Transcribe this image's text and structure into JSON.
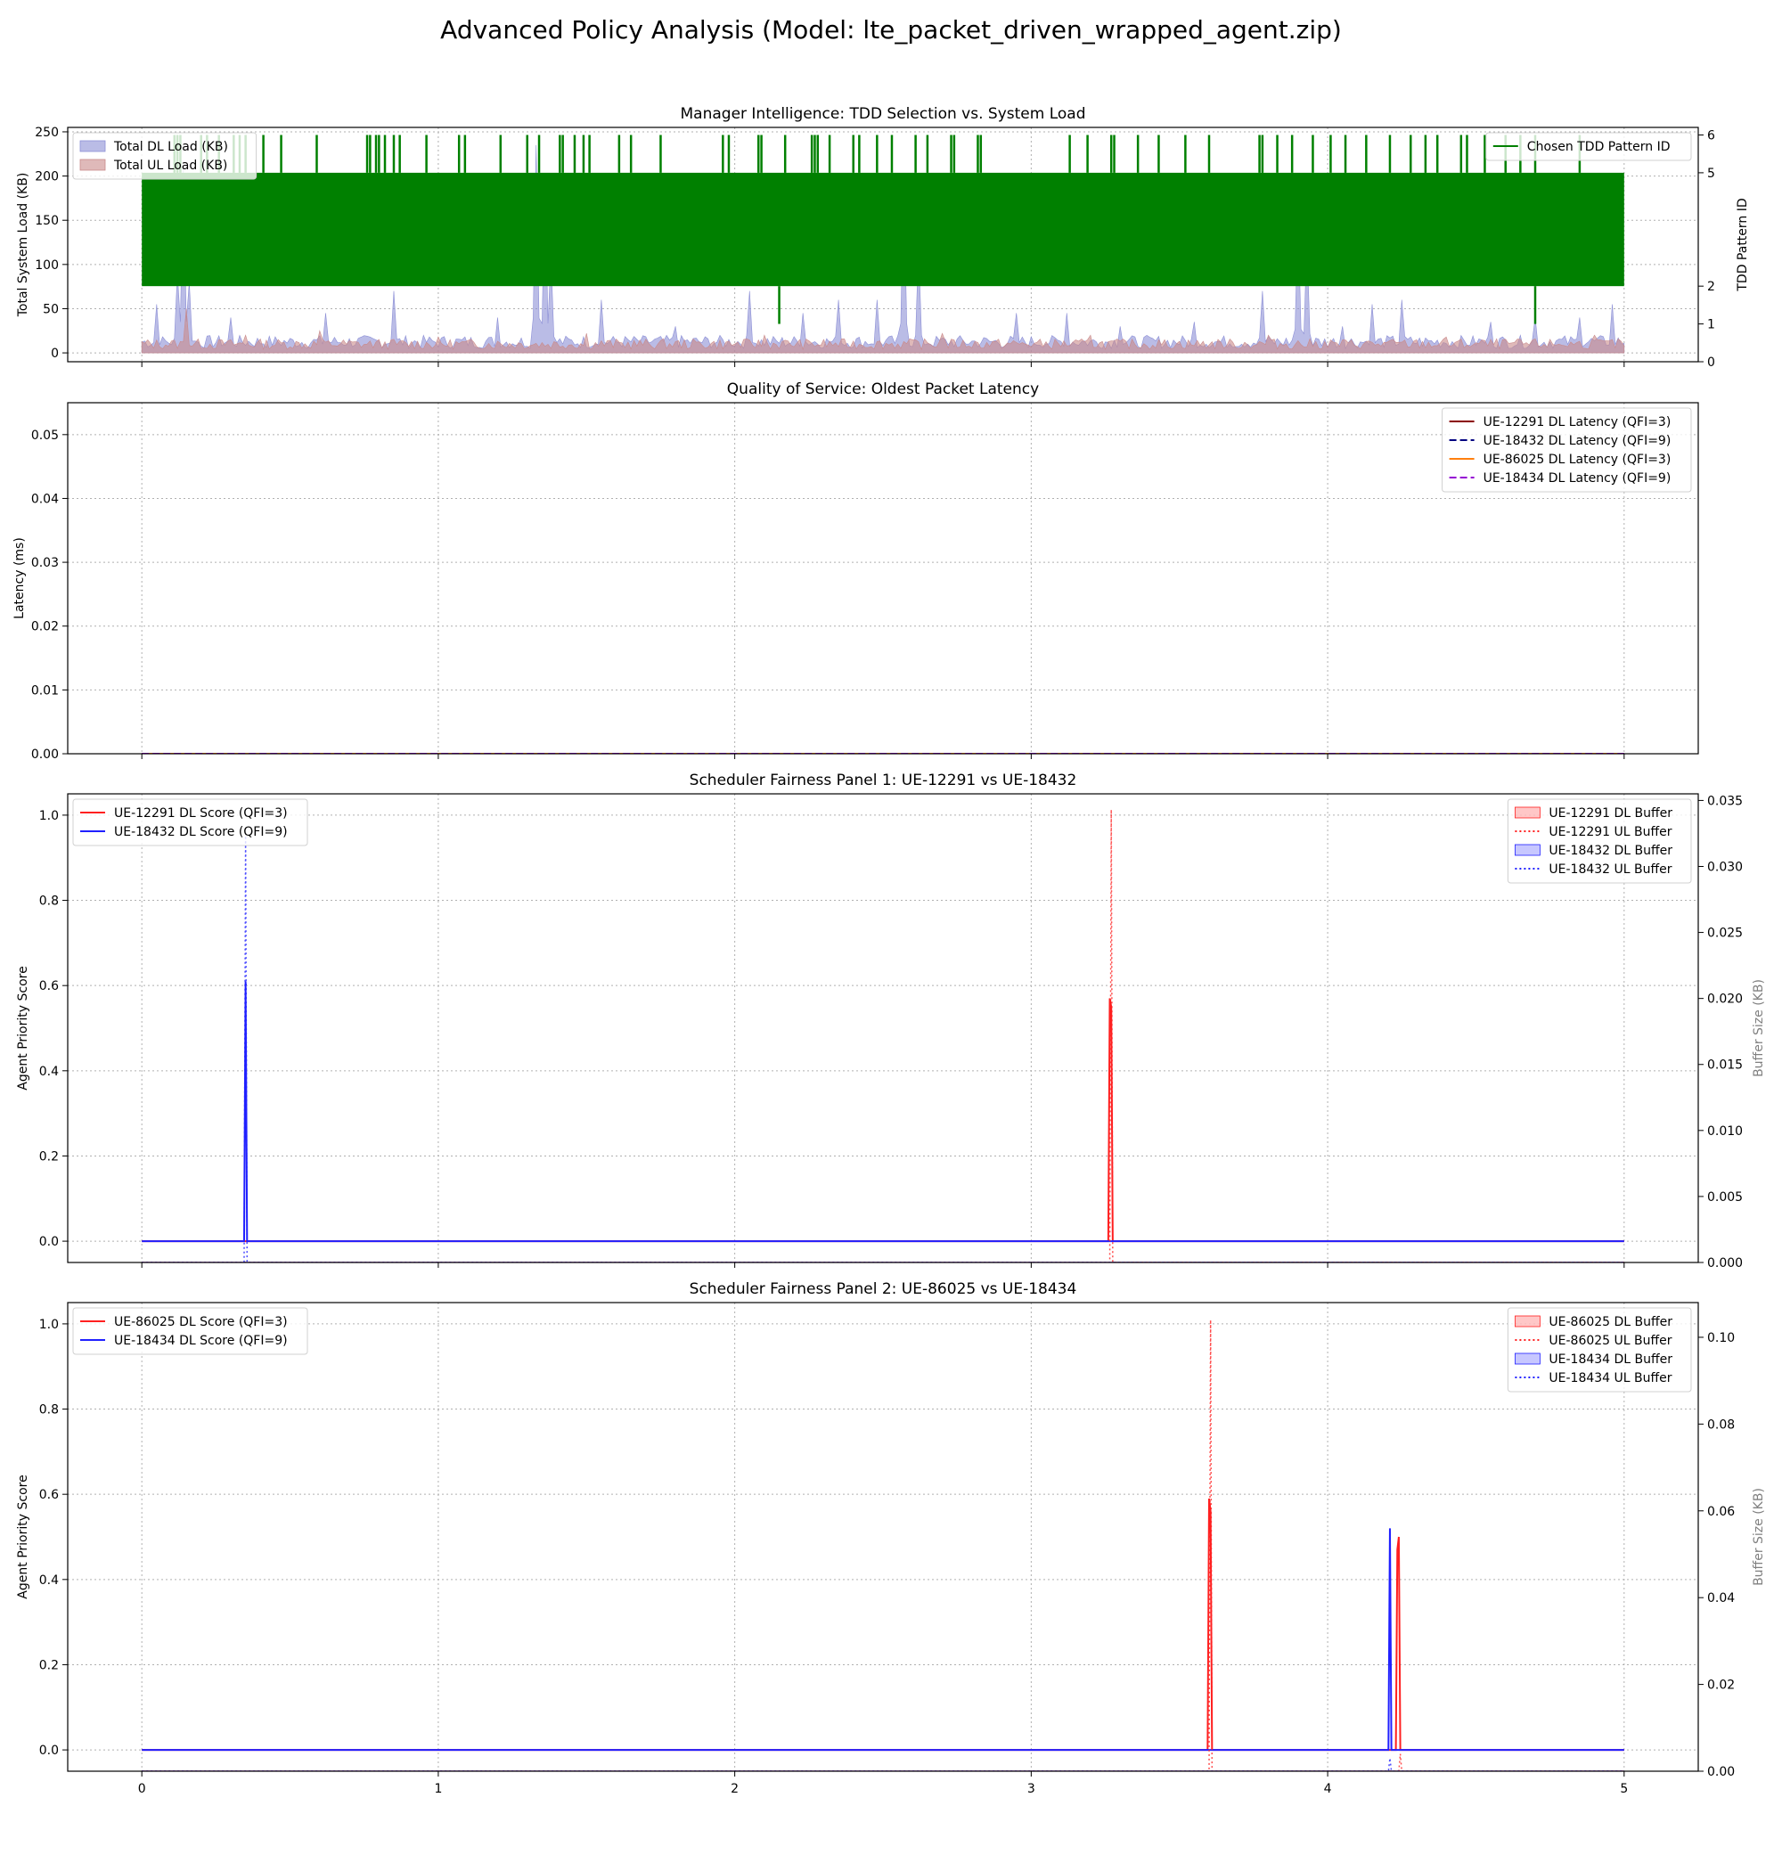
{
  "figure": {
    "title": "Advanced Policy Analysis (Model: lte_packet_driven_wrapped_agent.zip)"
  },
  "colors": {
    "dl_load": "#8c8fd6",
    "ul_load": "#c98a8a",
    "tdd": "#008000",
    "red": "#ff2020",
    "blue": "#2020ff",
    "darkred": "#8b0000",
    "navy": "#000080",
    "orange": "#ff7f0e",
    "purple": "#9400d3"
  },
  "chart_data": [
    {
      "type": "area",
      "title": "Manager Intelligence: TDD Selection vs. System Load",
      "xlabel": "",
      "ylabel": "Total System Load (KB)",
      "y2label": "TDD Pattern ID",
      "xlim": [
        -0.25,
        5.25
      ],
      "ylim": [
        -10,
        255
      ],
      "y2lim": [
        0,
        6.2
      ],
      "xticks": [
        0,
        1,
        2,
        3,
        4,
        5
      ],
      "yticks": [
        0,
        50,
        100,
        150,
        200,
        250
      ],
      "y2ticks": [
        0,
        1,
        2,
        5,
        6
      ],
      "grid": true,
      "legend_left": "top-left",
      "legend_right": "top-right",
      "series": [
        {
          "name": "Total DL Load (KB)",
          "axis": "left",
          "kind": "fill",
          "baseline": 5,
          "spikes": [
            [
              0.05,
              55
            ],
            [
              0.12,
              90
            ],
            [
              0.14,
              210
            ],
            [
              0.16,
              80
            ],
            [
              0.3,
              40
            ],
            [
              0.62,
              45
            ],
            [
              0.85,
              70
            ],
            [
              1.2,
              40
            ],
            [
              1.33,
              235
            ],
            [
              1.36,
              200
            ],
            [
              1.38,
              110
            ],
            [
              1.55,
              60
            ],
            [
              1.8,
              30
            ],
            [
              2.05,
              70
            ],
            [
              2.23,
              45
            ],
            [
              2.35,
              60
            ],
            [
              2.48,
              60
            ],
            [
              2.57,
              200
            ],
            [
              2.62,
              120
            ],
            [
              2.95,
              45
            ],
            [
              3.12,
              45
            ],
            [
              3.3,
              30
            ],
            [
              3.55,
              35
            ],
            [
              3.78,
              70
            ],
            [
              3.9,
              160
            ],
            [
              3.93,
              130
            ],
            [
              4.05,
              30
            ],
            [
              4.15,
              55
            ],
            [
              4.25,
              60
            ],
            [
              4.55,
              35
            ],
            [
              4.7,
              40
            ],
            [
              4.85,
              40
            ],
            [
              4.96,
              55
            ]
          ]
        },
        {
          "name": "Total UL Load (KB)",
          "axis": "left",
          "kind": "fill",
          "baseline": 4,
          "spikes": [
            [
              0.15,
              50
            ],
            [
              0.35,
              20
            ],
            [
              0.6,
              25
            ],
            [
              1.0,
              18
            ],
            [
              1.5,
              22
            ],
            [
              2.1,
              20
            ],
            [
              2.7,
              22
            ],
            [
              3.2,
              20
            ],
            [
              3.8,
              20
            ],
            [
              4.4,
              18
            ],
            [
              4.9,
              20
            ]
          ]
        },
        {
          "name": "Chosen TDD Pattern ID",
          "axis": "right",
          "kind": "step",
          "low": 2,
          "high": 5,
          "x_to_6": [
            0.11,
            0.12,
            0.13,
            0.2,
            0.22,
            0.26,
            0.31,
            0.33,
            0.35,
            0.41,
            0.47,
            0.59,
            0.76,
            0.77,
            0.79,
            0.8,
            0.82,
            0.85,
            0.87,
            0.96,
            1.07,
            1.09,
            1.21,
            1.3,
            1.34,
            1.41,
            1.42,
            1.46,
            1.49,
            1.51,
            1.61,
            1.65,
            1.75,
            1.96,
            1.98,
            2.08,
            2.09,
            2.17,
            2.26,
            2.27,
            2.28,
            2.32,
            2.4,
            2.42,
            2.48,
            2.53,
            2.61,
            2.65,
            2.73,
            2.74,
            2.82,
            2.83,
            3.13,
            3.19,
            3.27,
            3.28,
            3.36,
            3.43,
            3.52,
            3.6,
            3.77,
            3.78,
            3.83,
            3.88,
            3.95,
            4.01,
            4.06,
            4.13,
            4.21,
            4.28,
            4.33,
            4.37,
            4.45,
            4.47,
            4.53,
            4.6,
            4.65,
            4.7,
            4.85
          ],
          "x_to_1": [
            2.15,
            4.7
          ]
        }
      ]
    },
    {
      "type": "line",
      "title": "Quality of Service: Oldest Packet Latency",
      "xlabel": "",
      "ylabel": "Latency (ms)",
      "xlim": [
        -0.25,
        5.25
      ],
      "ylim": [
        0.0,
        0.055
      ],
      "xticks": [
        0,
        1,
        2,
        3,
        4,
        5
      ],
      "yticks": [
        0.0,
        0.01,
        0.02,
        0.03,
        0.04,
        0.05
      ],
      "grid": true,
      "legend": "top-right",
      "series": [
        {
          "name": "UE-12291 DL Latency (QFI=3)",
          "style": "solid",
          "x": [
            0,
            5
          ],
          "y": [
            0.0,
            0.0
          ]
        },
        {
          "name": "UE-18432 DL Latency (QFI=9)",
          "style": "dashed",
          "x": [
            0,
            5
          ],
          "y": [
            0.0,
            0.0
          ]
        },
        {
          "name": "UE-86025 DL Latency (QFI=3)",
          "style": "solid",
          "x": [
            0,
            5
          ],
          "y": [
            0.0,
            0.0
          ]
        },
        {
          "name": "UE-18434 DL Latency (QFI=9)",
          "style": "dashed",
          "x": [
            0,
            5
          ],
          "y": [
            0.0,
            0.0
          ]
        }
      ]
    },
    {
      "type": "line",
      "title": "Scheduler Fairness Panel 1: UE-12291 vs UE-18432",
      "xlabel": "",
      "ylabel": "Agent Priority Score",
      "y2label": "Buffer Size (KB)",
      "xlim": [
        -0.25,
        5.25
      ],
      "ylim": [
        -0.05,
        1.05
      ],
      "y2lim": [
        0.0,
        0.0355
      ],
      "xticks": [
        0,
        1,
        2,
        3,
        4,
        5
      ],
      "yticks": [
        0.0,
        0.2,
        0.4,
        0.6,
        0.8,
        1.0
      ],
      "y2ticks": [
        0.0,
        0.005,
        0.01,
        0.015,
        0.02,
        0.025,
        0.03,
        0.035
      ],
      "grid": true,
      "legend_left": "top-left",
      "legend_right": "top-right",
      "series": [
        {
          "name": "UE-12291 DL Score (QFI=3)",
          "axis": "left",
          "style": "solid",
          "x": [
            0,
            3.26,
            3.265,
            3.27,
            3.275,
            5
          ],
          "y": [
            0,
            0,
            0.57,
            0.55,
            0,
            0
          ]
        },
        {
          "name": "UE-18432 DL Score (QFI=9)",
          "axis": "left",
          "style": "solid",
          "x": [
            0,
            0.345,
            0.35,
            0.355,
            5
          ],
          "y": [
            0,
            0,
            0.61,
            0,
            0
          ]
        },
        {
          "name": "UE-12291 DL Buffer",
          "axis": "right",
          "style": "fill",
          "x": [
            0,
            5
          ],
          "y": [
            0,
            0
          ]
        },
        {
          "name": "UE-12291 UL Buffer",
          "axis": "right",
          "style": "dotted",
          "x": [
            0,
            3.265,
            3.27,
            3.275,
            5
          ],
          "y": [
            0,
            0,
            0.0343,
            0,
            0
          ]
        },
        {
          "name": "UE-18432 DL Buffer",
          "axis": "right",
          "style": "fill",
          "x": [
            0,
            5
          ],
          "y": [
            0,
            0
          ]
        },
        {
          "name": "UE-18432 UL Buffer",
          "axis": "right",
          "style": "dotted",
          "x": [
            0,
            0.345,
            0.35,
            0.355,
            5
          ],
          "y": [
            0,
            0,
            0.0325,
            0,
            0
          ]
        }
      ]
    },
    {
      "type": "line",
      "title": "Scheduler Fairness Panel 2: UE-86025 vs UE-18434",
      "xlabel": "",
      "ylabel": "Agent Priority Score",
      "y2label": "Buffer Size (KB)",
      "xlim": [
        -0.25,
        5.25
      ],
      "ylim": [
        -0.05,
        1.05
      ],
      "y2lim": [
        0.0,
        0.108
      ],
      "xticks": [
        0,
        1,
        2,
        3,
        4,
        5
      ],
      "yticks": [
        0.0,
        0.2,
        0.4,
        0.6,
        0.8,
        1.0
      ],
      "y2ticks": [
        0.0,
        0.02,
        0.04,
        0.06,
        0.08,
        0.1
      ],
      "grid": true,
      "legend_left": "top-left",
      "legend_right": "top-right",
      "series": [
        {
          "name": "UE-86025 DL Score (QFI=3)",
          "axis": "left",
          "style": "solid",
          "x": [
            0,
            3.595,
            3.6,
            3.605,
            3.61,
            4.23,
            4.235,
            4.24,
            4.245,
            5
          ],
          "y": [
            0,
            0,
            0.59,
            0.56,
            0,
            0,
            0.47,
            0.5,
            0,
            0
          ]
        },
        {
          "name": "UE-18434 DL Score (QFI=9)",
          "axis": "left",
          "style": "solid",
          "x": [
            0,
            4.205,
            4.21,
            4.215,
            5
          ],
          "y": [
            0,
            0,
            0.52,
            0,
            0
          ]
        },
        {
          "name": "UE-86025 DL Buffer",
          "axis": "right",
          "style": "fill",
          "x": [
            0,
            5
          ],
          "y": [
            0,
            0
          ]
        },
        {
          "name": "UE-86025 UL Buffer",
          "axis": "right",
          "style": "dotted",
          "x": [
            0,
            3.6,
            3.605,
            3.61,
            4.24,
            4.245,
            4.25,
            5
          ],
          "y": [
            0,
            0,
            0.104,
            0,
            0,
            0.004,
            0,
            0
          ]
        },
        {
          "name": "UE-18434 DL Buffer",
          "axis": "right",
          "style": "fill",
          "x": [
            0,
            5
          ],
          "y": [
            0,
            0
          ]
        },
        {
          "name": "UE-18434 UL Buffer",
          "axis": "right",
          "style": "dotted",
          "x": [
            0,
            4.205,
            4.21,
            4.215,
            5
          ],
          "y": [
            0,
            0,
            0.003,
            0,
            0
          ]
        }
      ]
    }
  ]
}
